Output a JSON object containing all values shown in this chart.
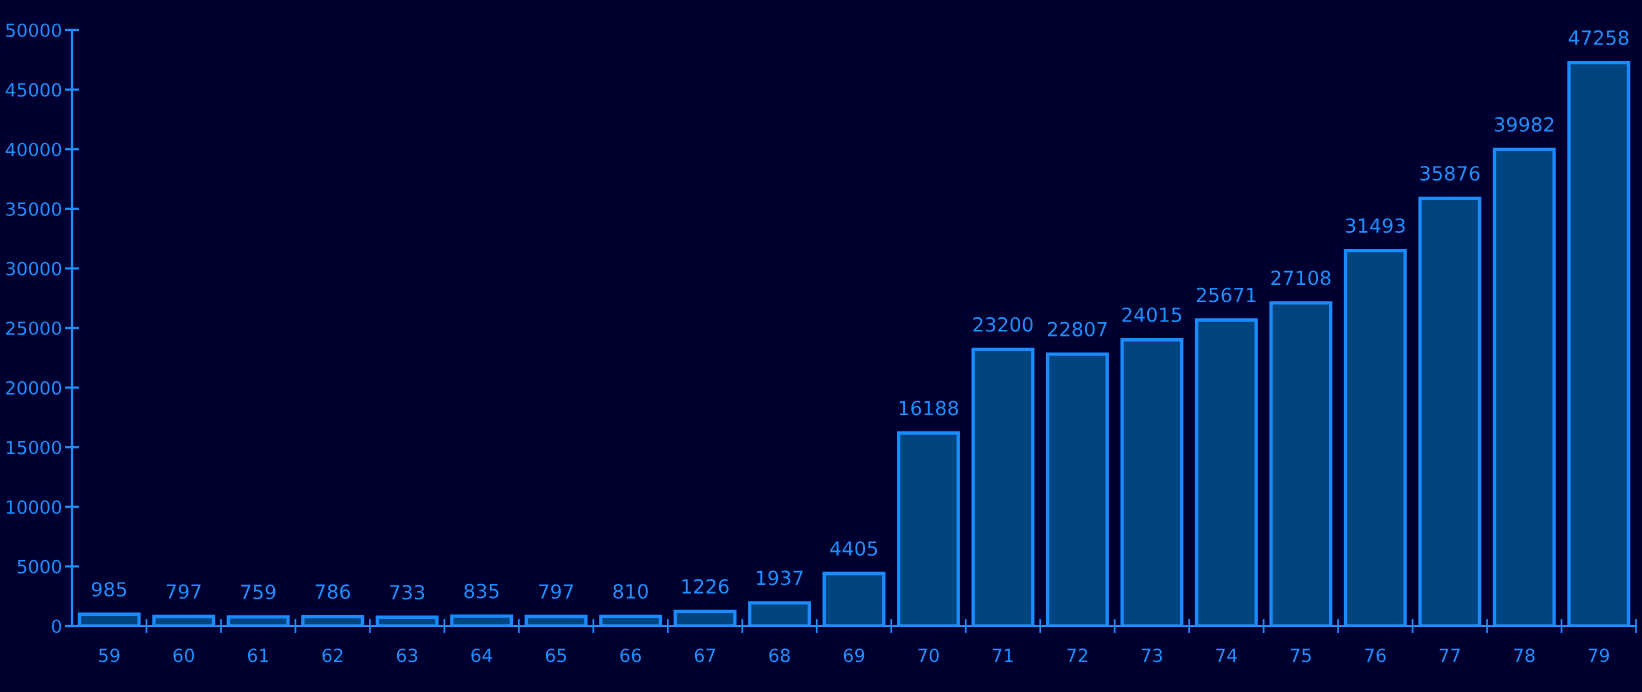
{
  "chart_data": {
    "type": "bar",
    "categories": [
      "59",
      "60",
      "61",
      "62",
      "63",
      "64",
      "65",
      "66",
      "67",
      "68",
      "69",
      "70",
      "71",
      "72",
      "73",
      "74",
      "75",
      "76",
      "77",
      "78",
      "79"
    ],
    "values": [
      985,
      797,
      759,
      786,
      733,
      835,
      797,
      810,
      1226,
      1937,
      4405,
      16188,
      23200,
      22807,
      24015,
      25671,
      27108,
      31493,
      35876,
      39982,
      47258
    ],
    "color": "#004480",
    "ylim": [
      0,
      50000
    ],
    "yticks": [
      0,
      5000,
      10000,
      15000,
      20000,
      25000,
      30000,
      35000,
      40000,
      45000,
      50000
    ],
    "data_labels": true,
    "grid": false,
    "legend": false
  }
}
